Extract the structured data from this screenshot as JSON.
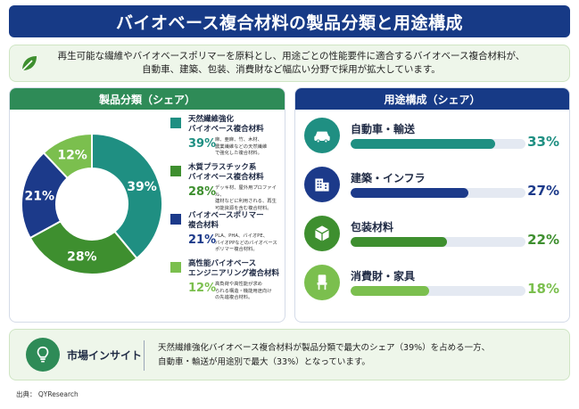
{
  "title": "バイオベース複合材料の製品分類と用途構成",
  "summary": {
    "line1": "再生可能な繊維やバイオベースポリマーを原料とし、用途ごとの性能要件に適合するバイオベース複合材料が、",
    "line2": "自動車、建築、包装、消費財など幅広い分野で採用が拡大しています。",
    "icon": "leaf-icon"
  },
  "left_panel": {
    "title": "製品分類（シェア）"
  },
  "right_panel": {
    "title": "用途構成（シェア）"
  },
  "chart_data": [
    {
      "type": "pie",
      "title": "製品分類（シェア）",
      "categories": [
        "天然繊維強化バイオベース複合材料",
        "木質プラスチック系バイオベース複合材料",
        "バイオベースポリマー複合材料",
        "高性能バイオベースエンジニアリング複合材料"
      ],
      "values": [
        39,
        28,
        21,
        12
      ],
      "value_labels": [
        "39%",
        "28%",
        "21%",
        "12%"
      ],
      "colors": [
        "#1f8f82",
        "#3e8f2f",
        "#1c3a8a",
        "#7bbf4e"
      ],
      "legend_placement": "right",
      "legend": [
        {
          "name1": "天然繊維強化",
          "name2": "バイオベース複合材料",
          "pct": "39%",
          "desc1": "麻、亜麻、竹、木材、",
          "desc2": "農業繊維などの天然繊維",
          "desc3": "で強化した複合材料。"
        },
        {
          "name1": "木質プラスチック系",
          "name2": "バイオベース複合材料",
          "pct": "28%",
          "desc1": "デッキ材、屋外用プロファイル、",
          "desc2": "建材などに利用される、再生",
          "desc3": "可能資源を含む複合材料。"
        },
        {
          "name1": "バイオベースポリマー",
          "name2": "複合材料",
          "pct": "21%",
          "desc1": "PLA、PHA、バイオPE、",
          "desc2": "バイオPPなどのバイオベース",
          "desc3": "ポリマー複合材料。"
        },
        {
          "name1": "高性能バイオベース",
          "name2": "エンジニアリング複合材料",
          "pct": "12%",
          "desc1": "高負荷や高性能が求め",
          "desc2": "られる構造・機能用途向け",
          "desc3": "の先進複合材料。"
        }
      ]
    },
    {
      "type": "bar",
      "title": "用途構成（シェア）",
      "orientation": "horizontal",
      "categories": [
        "自動車・輸送",
        "建築・インフラ",
        "包装材料",
        "消費財・家具"
      ],
      "values": [
        33,
        27,
        22,
        18
      ],
      "value_labels": [
        "33%",
        "27%",
        "22%",
        "18%"
      ],
      "colors": [
        "#1f8f82",
        "#1c3a8a",
        "#3e8f2f",
        "#7bbf4e"
      ],
      "icons": [
        "car-icon",
        "building-icon",
        "package-icon",
        "chair-icon"
      ],
      "xlim": [
        0,
        40
      ]
    }
  ],
  "insight": {
    "label": "市場インサイト",
    "line1": "天然繊維強化バイオベース複合材料が製品分類で最大のシェア（39%）を占める一方、",
    "line2": "自動車・輸送が用途別で最大（33%）となっています。",
    "icon": "lightbulb-icon"
  },
  "source": "出典： QYResearch"
}
